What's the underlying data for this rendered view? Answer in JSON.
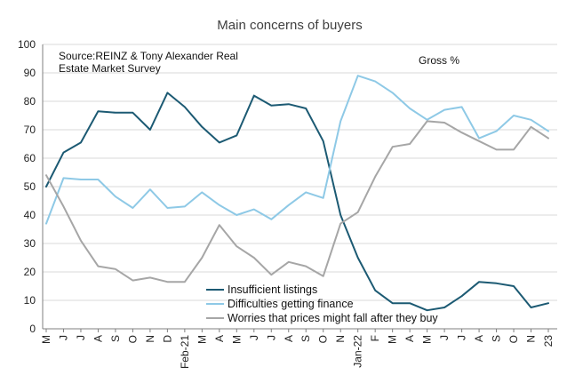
{
  "chart_data": {
    "type": "line",
    "title": "Main concerns of buyers",
    "source_note_line1": "Source:REINZ & Tony Alexander Real",
    "source_note_line2": "Estate Market Survey",
    "measure_note": "Gross %",
    "ylim": [
      0,
      100
    ],
    "yticks": [
      0,
      10,
      20,
      30,
      40,
      50,
      60,
      70,
      80,
      90,
      100
    ],
    "x_labels": [
      "M",
      "J",
      "J",
      "A",
      "S",
      "O",
      "N",
      "D",
      "Feb-21",
      "M",
      "A",
      "M",
      "J",
      "J",
      "A",
      "S",
      "O",
      "N",
      "Jan-22",
      "F",
      "M",
      "A",
      "M",
      "J",
      "J",
      "A",
      "S",
      "O",
      "N",
      "23"
    ],
    "grid": true,
    "legend_position": "bottom-center",
    "series": [
      {
        "name": "Insufficient listings",
        "color": "#1c5a73",
        "values": [
          50,
          62,
          65.5,
          76.5,
          76,
          76,
          70,
          83,
          78,
          71,
          65.5,
          68,
          82,
          78.5,
          79,
          77.5,
          66,
          40,
          25,
          13.5,
          9,
          9,
          6.5,
          7.5,
          11.5,
          16.5,
          16,
          15,
          7.5,
          9
        ]
      },
      {
        "name": "Difficulties getting finance",
        "color": "#8ec9e6",
        "values": [
          37,
          53,
          52.5,
          52.5,
          46.5,
          42.5,
          49,
          42.5,
          43,
          48,
          43.5,
          40,
          42,
          38.5,
          43.5,
          48,
          46,
          73,
          89,
          87,
          83,
          77.5,
          73.5,
          77,
          78,
          67,
          69.5,
          75,
          73.5,
          69.5
        ]
      },
      {
        "name": "Worries that prices might fall after they buy",
        "color": "#a6a6a6",
        "values": [
          54,
          43,
          31,
          22,
          21,
          17,
          18,
          16.5,
          16.5,
          25,
          36.5,
          29,
          25,
          19,
          23.5,
          22,
          18.5,
          37,
          41,
          53.5,
          64,
          65,
          73,
          72.5,
          69,
          66,
          63,
          63,
          71,
          67
        ]
      }
    ]
  }
}
